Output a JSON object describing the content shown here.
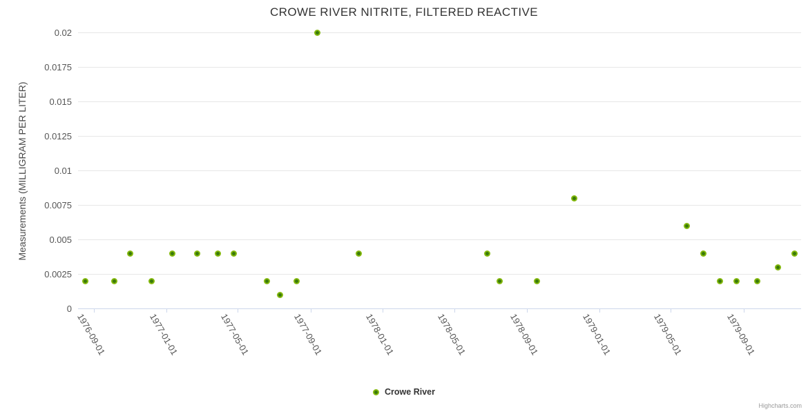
{
  "chart_data": {
    "type": "scatter",
    "title": "CROWE RIVER NITRITE, FILTERED REACTIVE",
    "xlabel": "",
    "ylabel": "Measurements (MILLIGRAM PER LITER)",
    "ylim": [
      0,
      0.02
    ],
    "ytick_labels": [
      "0",
      "0.0025",
      "0.005",
      "0.0075",
      "0.01",
      "0.0125",
      "0.015",
      "0.0175",
      "0.02"
    ],
    "ytick_values": [
      0,
      0.0025,
      0.005,
      0.0075,
      0.01,
      0.0125,
      0.015,
      0.0175,
      0.02
    ],
    "xlim": [
      "1976-08-05",
      "1979-12-07"
    ],
    "xtick_labels": [
      "1976-09-01",
      "1977-01-01",
      "1977-05-01",
      "1977-09-01",
      "1978-01-01",
      "1978-05-01",
      "1978-09-01",
      "1979-01-01",
      "1979-05-01",
      "1979-09-01"
    ],
    "grid": "horizontal",
    "legend_position": "bottom-center",
    "series": [
      {
        "name": "Crowe River",
        "color": "#83b80d",
        "marker_center_color": "#3a7a0a",
        "points": [
          [
            "1976-08-17",
            0.002
          ],
          [
            "1976-10-05",
            0.002
          ],
          [
            "1976-11-01",
            0.004
          ],
          [
            "1976-12-07",
            0.002
          ],
          [
            "1977-01-11",
            0.004
          ],
          [
            "1977-02-22",
            0.004
          ],
          [
            "1977-03-29",
            0.004
          ],
          [
            "1977-04-25",
            0.004
          ],
          [
            "1977-06-20",
            0.002
          ],
          [
            "1977-07-12",
            0.001
          ],
          [
            "1977-08-08",
            0.002
          ],
          [
            "1977-09-12",
            0.02
          ],
          [
            "1977-11-21",
            0.004
          ],
          [
            "1978-06-26",
            0.004
          ],
          [
            "1978-07-17",
            0.002
          ],
          [
            "1978-09-18",
            0.002
          ],
          [
            "1978-11-20",
            0.008
          ],
          [
            "1979-05-28",
            0.006
          ],
          [
            "1979-06-25",
            0.004
          ],
          [
            "1979-07-23",
            0.002
          ],
          [
            "1979-08-20",
            0.002
          ],
          [
            "1979-09-24",
            0.002
          ],
          [
            "1979-10-29",
            0.003
          ],
          [
            "1979-11-26",
            0.004
          ]
        ]
      }
    ]
  },
  "legend": {
    "label": "Crowe River"
  },
  "credits": {
    "label": "Highcharts.com"
  },
  "colors": {
    "grid": "#e6e6e6",
    "axis_line": "#ccd6eb",
    "label_text": "#555555",
    "title_text": "#333333",
    "marker_outer": "#83b80d",
    "marker_inner": "#3a7a0a"
  }
}
